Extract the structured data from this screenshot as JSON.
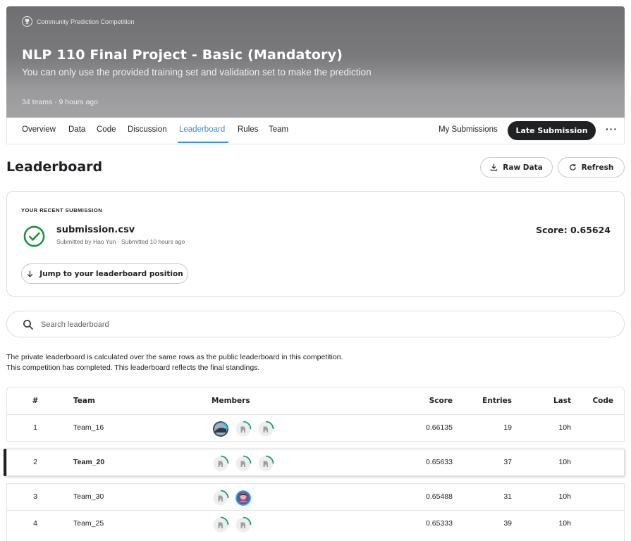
{
  "header": {
    "kind_label": "Community Prediction Competition",
    "title": "NLP 110 Final Project - Basic (Mandatory)",
    "subtitle": "You can only use the provided training set and validation set to make the prediction",
    "meta": "34 teams · 9 hours ago"
  },
  "tabs": [
    {
      "label": "Overview"
    },
    {
      "label": "Data"
    },
    {
      "label": "Code"
    },
    {
      "label": "Discussion"
    },
    {
      "label": "Leaderboard",
      "active": true
    },
    {
      "label": "Rules"
    },
    {
      "label": "Team"
    }
  ],
  "actions": {
    "my_submissions": "My Submissions",
    "late_submission": "Late Submission",
    "more": "···"
  },
  "leaderboard": {
    "title": "Leaderboard",
    "raw_data": "Raw Data",
    "refresh": "Refresh"
  },
  "recent": {
    "label": "YOUR RECENT SUBMISSION",
    "filename": "submission.csv",
    "submitted_by": "Submitted by Hao Yun · Submitted 10 hours ago",
    "score": "Score: 0.65624",
    "jump": "Jump to your leaderboard position"
  },
  "search": {
    "placeholder": "Search leaderboard"
  },
  "notice": {
    "line1": "The private leaderboard is calculated over the same rows as the public leaderboard in this competition.",
    "line2": "This competition has completed. This leaderboard reflects the final standings."
  },
  "table": {
    "headers": {
      "rank": "#",
      "team": "Team",
      "members": "Members",
      "score": "Score",
      "entries": "Entries",
      "last": "Last",
      "code": "Code"
    },
    "rows": [
      {
        "rank": "1",
        "team": "Team_16",
        "score": "0.66135",
        "entries": "19",
        "last": "10h",
        "members": [
          "photo",
          "default",
          "default"
        ]
      },
      {
        "rank": "2",
        "team": "Team_20",
        "score": "0.65633",
        "entries": "37",
        "last": "10h",
        "members": [
          "default",
          "default",
          "default"
        ],
        "highlight": true
      },
      {
        "rank": "3",
        "team": "Team_30",
        "score": "0.65488",
        "entries": "31",
        "last": "10h",
        "members": [
          "default",
          "photo-purple"
        ]
      },
      {
        "rank": "4",
        "team": "Team_25",
        "score": "0.65333",
        "entries": "39",
        "last": "10h",
        "members": [
          "default",
          "default"
        ]
      }
    ]
  },
  "colors": {
    "accent": "#3a8fd6",
    "success": "#1e8e3e",
    "dark": "#202124",
    "ring": "#20beff"
  }
}
